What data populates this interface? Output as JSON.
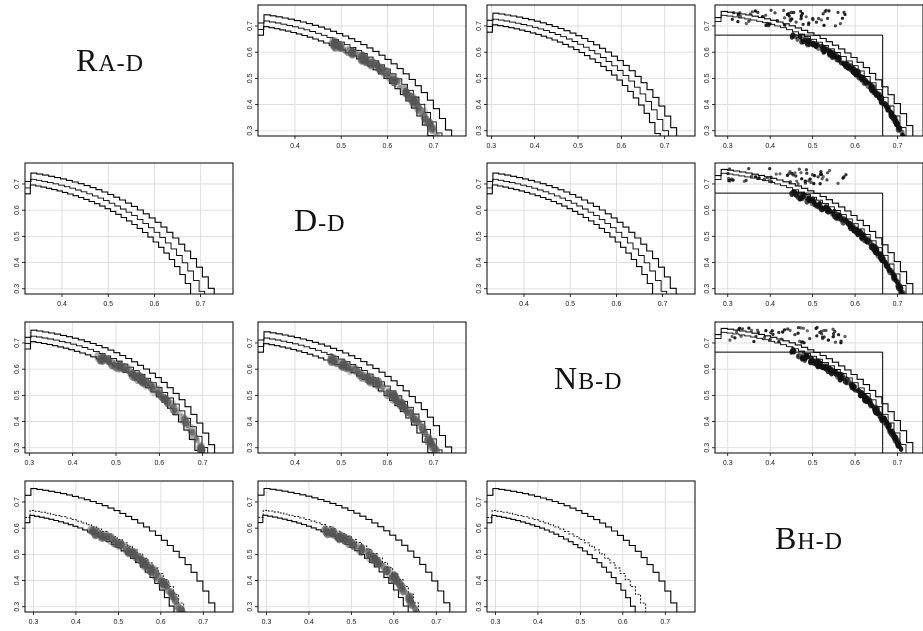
{
  "diagonal_labels": [
    {
      "id": "ra-d",
      "cap": "R",
      "rest": "A-D"
    },
    {
      "id": "d-d",
      "cap": "D",
      "rest": "-D"
    },
    {
      "id": "nb-d",
      "cap": "N",
      "rest": "B-D"
    },
    {
      "id": "bh-d",
      "cap": "B",
      "rest": "H-D"
    }
  ],
  "colors": {
    "frame": "#000000",
    "grid": "#d9d9d9",
    "curve": "#000000",
    "density": "#555555"
  },
  "chart_data": [
    {
      "id": "p-0-1",
      "row": 0,
      "col": 1,
      "type": "line",
      "xticks": [
        "0.4",
        "0.5",
        "0.6",
        "0.7"
      ],
      "yticks": [
        "0.3",
        "0.4",
        "0.5",
        "0.6",
        "0.7"
      ],
      "xlim": [
        0.32,
        0.77
      ],
      "ylim": [
        0.28,
        0.78
      ],
      "grid": true,
      "fronts": [
        {
          "x0": 0.0,
          "y0": 0.77,
          "xmax": 0.765
        },
        {
          "x0": 0.0,
          "y0": 0.748,
          "xmax": 0.743
        },
        {
          "x0": 0.0,
          "y0": 0.728,
          "xmax": 0.723
        }
      ],
      "reflines": [],
      "density": {
        "present": true,
        "kind": "smear"
      }
    },
    {
      "id": "p-0-2",
      "row": 0,
      "col": 2,
      "type": "line",
      "xticks": [
        "0.3",
        "0.4",
        "0.5",
        "0.6",
        "0.7"
      ],
      "yticks": [
        "0.3",
        "0.4",
        "0.5",
        "0.6",
        "0.7"
      ],
      "xlim": [
        0.29,
        0.77
      ],
      "ylim": [
        0.28,
        0.78
      ],
      "grid": true,
      "fronts": [
        {
          "x0": 0.0,
          "y0": 0.77,
          "xmax": 0.755
        },
        {
          "x0": 0.0,
          "y0": 0.748,
          "xmax": 0.735
        },
        {
          "x0": 0.0,
          "y0": 0.728,
          "xmax": 0.715
        }
      ],
      "reflines": [],
      "density": {
        "present": false,
        "kind": "none"
      }
    },
    {
      "id": "p-0-3",
      "row": 0,
      "col": 3,
      "type": "scatter",
      "xticks": [
        "0.3",
        "0.4",
        "0.5",
        "0.6",
        "0.7"
      ],
      "yticks": [
        "0.3",
        "0.4",
        "0.5",
        "0.6",
        "0.7"
      ],
      "xlim": [
        0.27,
        0.76
      ],
      "ylim": [
        0.28,
        0.78
      ],
      "grid": true,
      "fronts": [
        {
          "x0": 0.0,
          "y0": 0.772,
          "xmax": 0.765
        },
        {
          "x0": 0.0,
          "y0": 0.758,
          "xmax": 0.748
        }
      ],
      "reflines": [
        {
          "x": 0.665,
          "y": 0.665
        }
      ],
      "density": {
        "present": true,
        "kind": "dots"
      }
    },
    {
      "id": "p-1-0",
      "row": 1,
      "col": 0,
      "type": "line",
      "xticks": [
        "0.4",
        "0.5",
        "0.6",
        "0.7"
      ],
      "yticks": [
        "0.3",
        "0.4",
        "0.5",
        "0.6",
        "0.7"
      ],
      "xlim": [
        0.32,
        0.77
      ],
      "ylim": [
        0.28,
        0.78
      ],
      "grid": true,
      "fronts": [
        {
          "x0": 0.0,
          "y0": 0.77,
          "xmax": 0.755
        },
        {
          "x0": 0.0,
          "y0": 0.748,
          "xmax": 0.733
        },
        {
          "x0": 0.0,
          "y0": 0.728,
          "xmax": 0.713
        }
      ],
      "reflines": [],
      "density": {
        "present": false,
        "kind": "none"
      }
    },
    {
      "id": "p-1-2",
      "row": 1,
      "col": 2,
      "type": "line",
      "xticks": [
        "0.4",
        "0.5",
        "0.6",
        "0.7"
      ],
      "yticks": [
        "0.3",
        "0.4",
        "0.5",
        "0.6",
        "0.7"
      ],
      "xlim": [
        0.32,
        0.77
      ],
      "ylim": [
        0.28,
        0.78
      ],
      "grid": true,
      "fronts": [
        {
          "x0": 0.0,
          "y0": 0.77,
          "xmax": 0.755
        },
        {
          "x0": 0.0,
          "y0": 0.748,
          "xmax": 0.733
        },
        {
          "x0": 0.0,
          "y0": 0.728,
          "xmax": 0.713
        }
      ],
      "reflines": [],
      "density": {
        "present": false,
        "kind": "none"
      }
    },
    {
      "id": "p-1-3",
      "row": 1,
      "col": 3,
      "type": "scatter",
      "xticks": [
        "0.3",
        "0.4",
        "0.5",
        "0.6",
        "0.7"
      ],
      "yticks": [
        "0.3",
        "0.4",
        "0.5",
        "0.6",
        "0.7"
      ],
      "xlim": [
        0.27,
        0.76
      ],
      "ylim": [
        0.28,
        0.78
      ],
      "grid": true,
      "fronts": [
        {
          "x0": 0.0,
          "y0": 0.772,
          "xmax": 0.765
        },
        {
          "x0": 0.0,
          "y0": 0.758,
          "xmax": 0.748
        }
      ],
      "reflines": [
        {
          "x": 0.665,
          "y": 0.665
        }
      ],
      "density": {
        "present": true,
        "kind": "dots"
      }
    },
    {
      "id": "p-2-0",
      "row": 2,
      "col": 0,
      "type": "line",
      "xticks": [
        "0.3",
        "0.4",
        "0.5",
        "0.6",
        "0.7"
      ],
      "yticks": [
        "0.3",
        "0.4",
        "0.5",
        "0.6",
        "0.7"
      ],
      "xlim": [
        0.29,
        0.77
      ],
      "ylim": [
        0.28,
        0.78
      ],
      "grid": true,
      "fronts": [
        {
          "x0": 0.0,
          "y0": 0.77,
          "xmax": 0.755
        },
        {
          "x0": 0.0,
          "y0": 0.748,
          "xmax": 0.738
        },
        {
          "x0": 0.0,
          "y0": 0.728,
          "xmax": 0.72
        }
      ],
      "reflines": [],
      "density": {
        "present": true,
        "kind": "smear"
      }
    },
    {
      "id": "p-2-1",
      "row": 2,
      "col": 1,
      "type": "line",
      "xticks": [
        "0.4",
        "0.5",
        "0.6",
        "0.7"
      ],
      "yticks": [
        "0.3",
        "0.4",
        "0.5",
        "0.6",
        "0.7"
      ],
      "xlim": [
        0.32,
        0.77
      ],
      "ylim": [
        0.28,
        0.78
      ],
      "grid": true,
      "fronts": [
        {
          "x0": 0.0,
          "y0": 0.77,
          "xmax": 0.765
        },
        {
          "x0": 0.0,
          "y0": 0.748,
          "xmax": 0.743
        },
        {
          "x0": 0.0,
          "y0": 0.728,
          "xmax": 0.723
        }
      ],
      "reflines": [],
      "density": {
        "present": true,
        "kind": "smear"
      }
    },
    {
      "id": "p-2-3",
      "row": 2,
      "col": 3,
      "type": "scatter",
      "xticks": [
        "0.3",
        "0.4",
        "0.5",
        "0.6",
        "0.7"
      ],
      "yticks": [
        "0.3",
        "0.4",
        "0.5",
        "0.6",
        "0.7"
      ],
      "xlim": [
        0.27,
        0.76
      ],
      "ylim": [
        0.28,
        0.78
      ],
      "grid": true,
      "fronts": [
        {
          "x0": 0.0,
          "y0": 0.772,
          "xmax": 0.765
        },
        {
          "x0": 0.0,
          "y0": 0.758,
          "xmax": 0.748
        }
      ],
      "reflines": [
        {
          "x": 0.665,
          "y": 0.665
        }
      ],
      "density": {
        "present": true,
        "kind": "dots"
      }
    },
    {
      "id": "p-3-0",
      "row": 3,
      "col": 0,
      "type": "line",
      "xticks": [
        "0.3",
        "0.4",
        "0.5",
        "0.6",
        "0.7"
      ],
      "yticks": [
        "0.3",
        "0.4",
        "0.5",
        "0.6",
        "0.7"
      ],
      "xlim": [
        0.28,
        0.77
      ],
      "ylim": [
        0.28,
        0.78
      ],
      "grid": true,
      "fronts": [
        {
          "x0": 0.0,
          "y0": 0.77,
          "xmax": 0.755
        },
        {
          "x0": 0.0,
          "y0": 0.69,
          "xmax": 0.69
        },
        {
          "x0": 0.0,
          "y0": 0.673,
          "xmax": 0.665
        }
      ],
      "reflines": [],
      "density": {
        "present": true,
        "kind": "smear"
      }
    },
    {
      "id": "p-3-1",
      "row": 3,
      "col": 1,
      "type": "line",
      "xticks": [
        "0.3",
        "0.4",
        "0.5",
        "0.6",
        "0.7"
      ],
      "yticks": [
        "0.3",
        "0.4",
        "0.5",
        "0.6",
        "0.7"
      ],
      "xlim": [
        0.28,
        0.77
      ],
      "ylim": [
        0.28,
        0.78
      ],
      "grid": true,
      "fronts": [
        {
          "x0": 0.0,
          "y0": 0.77,
          "xmax": 0.76
        },
        {
          "x0": 0.0,
          "y0": 0.69,
          "xmax": 0.695
        },
        {
          "x0": 0.0,
          "y0": 0.673,
          "xmax": 0.668
        }
      ],
      "reflines": [],
      "density": {
        "present": true,
        "kind": "smear"
      }
    },
    {
      "id": "p-3-2",
      "row": 3,
      "col": 2,
      "type": "line",
      "xticks": [
        "0.3",
        "0.4",
        "0.5",
        "0.6",
        "0.7"
      ],
      "yticks": [
        "0.3",
        "0.4",
        "0.5",
        "0.6",
        "0.7"
      ],
      "xlim": [
        0.28,
        0.77
      ],
      "ylim": [
        0.28,
        0.78
      ],
      "grid": true,
      "fronts": [
        {
          "x0": 0.0,
          "y0": 0.77,
          "xmax": 0.755
        },
        {
          "x0": 0.0,
          "y0": 0.69,
          "xmax": 0.69
        },
        {
          "x0": 0.0,
          "y0": 0.673,
          "xmax": 0.663
        }
      ],
      "reflines": [],
      "density": {
        "present": false,
        "kind": "none"
      }
    }
  ]
}
